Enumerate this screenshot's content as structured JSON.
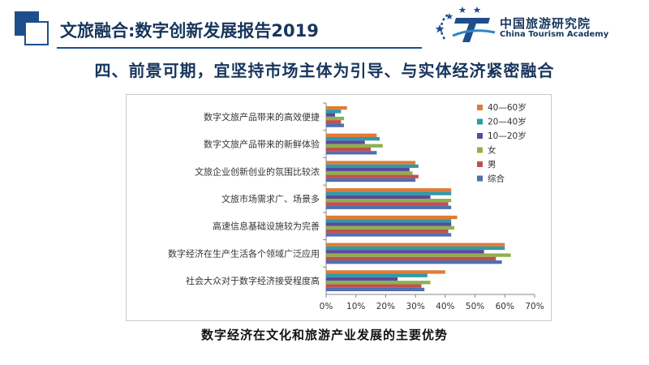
{
  "header": {
    "title": "文旅融合:数字创新发展报告2019",
    "accent_color": "#1f4e8c"
  },
  "logo": {
    "name_cn": "中国旅游研究院",
    "name_en": "China Tourism Academy"
  },
  "subtitle": "四、前景可期，宜坚持市场主体为引导、与实体经济紧密融合",
  "caption": "数字经济在文化和旅游产业发展的主要优势",
  "chart_data": {
    "type": "bar",
    "orientation": "horizontal",
    "categories": [
      "数字文旅产品带来的高效便捷",
      "数字文旅产品带来的新鲜体验",
      "文旅企业创新创业的氛围比较浓",
      "文旅市场需求广、场景多",
      "高速信息基础设施较为完善",
      "数字经济在生产生活各个领域广泛应用",
      "社会大众对于数字经济接受程度高"
    ],
    "series": [
      {
        "name": "40—60岁",
        "color": "#e07b39",
        "values": [
          7,
          17,
          30,
          42,
          44,
          60,
          40
        ]
      },
      {
        "name": "20—40岁",
        "color": "#2e9aa8",
        "values": [
          5,
          18,
          31,
          42,
          42,
          60,
          34
        ]
      },
      {
        "name": "10—20岁",
        "color": "#5b4a9b",
        "values": [
          3,
          13,
          28,
          35,
          42,
          53,
          24
        ]
      },
      {
        "name": "女",
        "color": "#8fb04b",
        "values": [
          6,
          19,
          29,
          42,
          43,
          62,
          35
        ]
      },
      {
        "name": "男",
        "color": "#c0504d",
        "values": [
          5,
          15,
          31,
          41,
          41,
          57,
          32
        ]
      },
      {
        "name": "综合",
        "color": "#4f6fb0",
        "values": [
          6,
          17,
          30,
          42,
          42,
          59,
          33
        ]
      }
    ],
    "x_ticks": [
      "0%",
      "10%",
      "20%",
      "30%",
      "40%",
      "50%",
      "60%",
      "70%"
    ],
    "xlim": [
      0,
      70
    ],
    "unit": "%",
    "grid": false,
    "legend_position": "right"
  }
}
